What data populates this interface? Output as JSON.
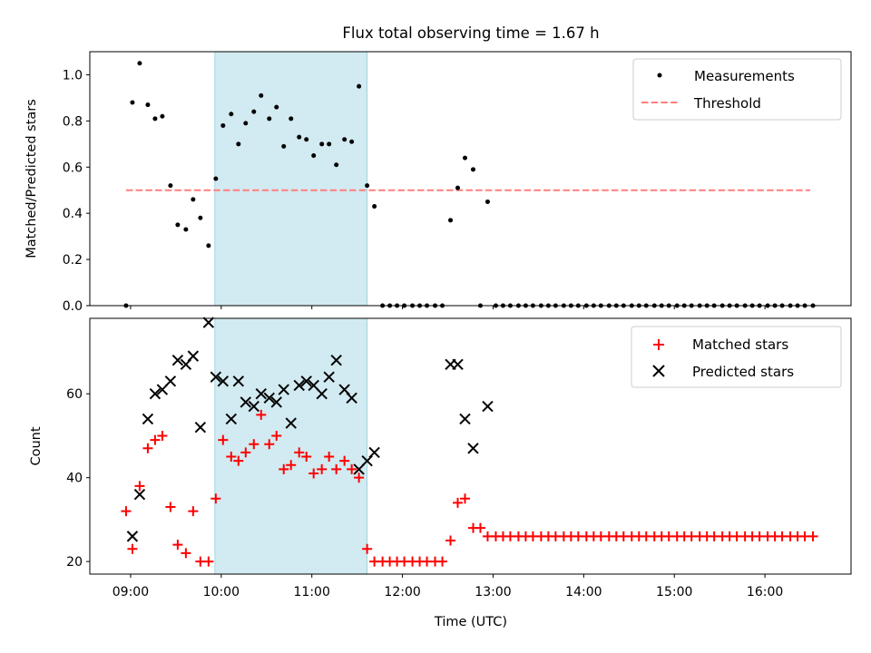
{
  "figure": {
    "title": "Flux total observing time = 1.67 h",
    "xlabel": "Time (UTC)",
    "x_tick_labels": [
      "09:00",
      "10:00",
      "11:00",
      "12:00",
      "13:00",
      "14:00",
      "15:00",
      "16:00"
    ],
    "highlight_color": "#add8e6"
  },
  "chart_data": [
    {
      "type": "scatter",
      "panel": "top",
      "ylabel": "Matched/Predicted stars",
      "xlim_hours": [
        8.55,
        16.95
      ],
      "ylim": [
        0,
        1.1
      ],
      "y_ticks": [
        0.0,
        0.2,
        0.4,
        0.6,
        0.8,
        1.0
      ],
      "y_tick_labels": [
        "0.0",
        "0.2",
        "0.4",
        "0.6",
        "0.8",
        "1.0"
      ],
      "legend_position": "top-right",
      "highlight_span_hours": [
        9.93,
        11.61
      ],
      "threshold": {
        "name": "Threshold",
        "value": 0.5,
        "x_range_hours": [
          8.95,
          16.5
        ],
        "color": "#ff7f7f",
        "style": "dashed"
      },
      "measurements": {
        "name": "Measurements",
        "color": "#000000",
        "x_hours": [
          8.95,
          9.02,
          9.1,
          9.19,
          9.27,
          9.35,
          9.44,
          9.52,
          9.61,
          9.69,
          9.77,
          9.86,
          9.94,
          10.02,
          10.11,
          10.19,
          10.27,
          10.36,
          10.44,
          10.53,
          10.61,
          10.69,
          10.77,
          10.86,
          10.94,
          11.02,
          11.11,
          11.19,
          11.27,
          11.36,
          11.44,
          11.52,
          11.61,
          11.69,
          11.78,
          11.86,
          11.94,
          12.02,
          12.11,
          12.19,
          12.27,
          12.36,
          12.44,
          12.53,
          12.61,
          12.69,
          12.78,
          12.86,
          12.94,
          13.03,
          13.11,
          13.19,
          13.28,
          13.36,
          13.44,
          13.53,
          13.61,
          13.69,
          13.78,
          13.86,
          13.94,
          14.03,
          14.11,
          14.19,
          14.28,
          14.36,
          14.44,
          14.53,
          14.61,
          14.69,
          14.78,
          14.86,
          14.94,
          15.03,
          15.11,
          15.19,
          15.28,
          15.36,
          15.44,
          15.53,
          15.61,
          15.69,
          15.78,
          15.86,
          15.94,
          16.03,
          16.11,
          16.19,
          16.28,
          16.36,
          16.44,
          16.53
        ],
        "y": [
          0.0,
          0.88,
          1.05,
          0.87,
          0.81,
          0.82,
          0.52,
          0.35,
          0.33,
          0.46,
          0.38,
          0.26,
          0.55,
          0.78,
          0.83,
          0.7,
          0.79,
          0.84,
          0.91,
          0.81,
          0.86,
          0.69,
          0.81,
          0.73,
          0.72,
          0.65,
          0.7,
          0.7,
          0.61,
          0.72,
          0.71,
          0.95,
          0.52,
          0.43,
          0.0,
          0.0,
          0.0,
          0.0,
          0.0,
          0.0,
          0.0,
          0.0,
          0.0,
          0.37,
          0.51,
          0.64,
          0.59,
          0.0,
          0.45,
          0.0,
          0.0,
          0.0,
          0.0,
          0.0,
          0.0,
          0.0,
          0.0,
          0.0,
          0.0,
          0.0,
          0.0,
          0.0,
          0.0,
          0.0,
          0.0,
          0.0,
          0.0,
          0.0,
          0.0,
          0.0,
          0.0,
          0.0,
          0.0,
          0.0,
          0.0,
          0.0,
          0.0,
          0.0,
          0.0,
          0.0,
          0.0,
          0.0,
          0.0,
          0.0,
          0.0,
          0.0,
          0.0,
          0.0,
          0.0,
          0.0,
          0.0,
          0.0
        ]
      }
    },
    {
      "type": "scatter",
      "panel": "bottom",
      "ylabel": "Count",
      "xlim_hours": [
        8.55,
        16.95
      ],
      "ylim": [
        17,
        78
      ],
      "y_ticks": [
        20,
        40,
        60
      ],
      "y_tick_labels": [
        "20",
        "40",
        "60"
      ],
      "legend_position": "top-right",
      "highlight_span_hours": [
        9.93,
        11.61
      ],
      "series": [
        {
          "name": "Matched stars",
          "marker": "plus",
          "color": "#ff0000",
          "x_hours": [
            8.95,
            9.02,
            9.1,
            9.19,
            9.27,
            9.35,
            9.44,
            9.52,
            9.61,
            9.69,
            9.77,
            9.86,
            9.94,
            10.02,
            10.11,
            10.19,
            10.27,
            10.36,
            10.44,
            10.53,
            10.61,
            10.69,
            10.77,
            10.86,
            10.94,
            11.02,
            11.11,
            11.19,
            11.27,
            11.36,
            11.44,
            11.52,
            11.61,
            11.69,
            11.78,
            11.86,
            11.94,
            12.02,
            12.11,
            12.19,
            12.27,
            12.36,
            12.44,
            12.53,
            12.61,
            12.69,
            12.78,
            12.86,
            12.94,
            13.03,
            13.11,
            13.19,
            13.28,
            13.36,
            13.44,
            13.53,
            13.61,
            13.69,
            13.78,
            13.86,
            13.94,
            14.03,
            14.11,
            14.19,
            14.28,
            14.36,
            14.44,
            14.53,
            14.61,
            14.69,
            14.78,
            14.86,
            14.94,
            15.03,
            15.11,
            15.19,
            15.28,
            15.36,
            15.44,
            15.53,
            15.61,
            15.69,
            15.78,
            15.86,
            15.94,
            16.03,
            16.11,
            16.19,
            16.28,
            16.36,
            16.44,
            16.53
          ],
          "y": [
            32,
            23,
            38,
            47,
            49,
            50,
            33,
            24,
            22,
            32,
            20,
            20,
            35,
            49,
            45,
            44,
            46,
            48,
            55,
            48,
            50,
            42,
            43,
            46,
            45,
            41,
            42,
            45,
            42,
            44,
            42,
            40,
            23,
            20,
            20,
            20,
            20,
            20,
            20,
            20,
            20,
            20,
            20,
            25,
            34,
            35,
            28,
            28,
            26,
            26,
            26,
            26,
            26,
            26,
            26,
            26,
            26,
            26,
            26,
            26,
            26,
            26,
            26,
            26,
            26,
            26,
            26,
            26,
            26,
            26,
            26,
            26,
            26,
            26,
            26,
            26,
            26,
            26,
            26,
            26,
            26,
            26,
            26,
            26,
            26,
            26,
            26,
            26,
            26,
            26,
            26,
            26
          ]
        },
        {
          "name": "Predicted stars",
          "marker": "x",
          "color": "#000000",
          "x_hours": [
            9.02,
            9.1,
            9.19,
            9.27,
            9.35,
            9.44,
            9.52,
            9.61,
            9.69,
            9.77,
            9.86,
            9.94,
            10.02,
            10.11,
            10.19,
            10.27,
            10.36,
            10.44,
            10.53,
            10.61,
            10.69,
            10.77,
            10.86,
            10.94,
            11.02,
            11.11,
            11.19,
            11.27,
            11.36,
            11.44,
            11.52,
            11.61,
            11.69,
            12.53,
            12.61,
            12.69,
            12.78,
            12.94
          ],
          "y": [
            26,
            36,
            54,
            60,
            61,
            63,
            68,
            67,
            69,
            52,
            77,
            64,
            63,
            54,
            63,
            58,
            57,
            60,
            59,
            58,
            61,
            53,
            62,
            63,
            62,
            60,
            64,
            68,
            61,
            59,
            42,
            44,
            46,
            67,
            67,
            54,
            47,
            57
          ]
        }
      ]
    }
  ]
}
